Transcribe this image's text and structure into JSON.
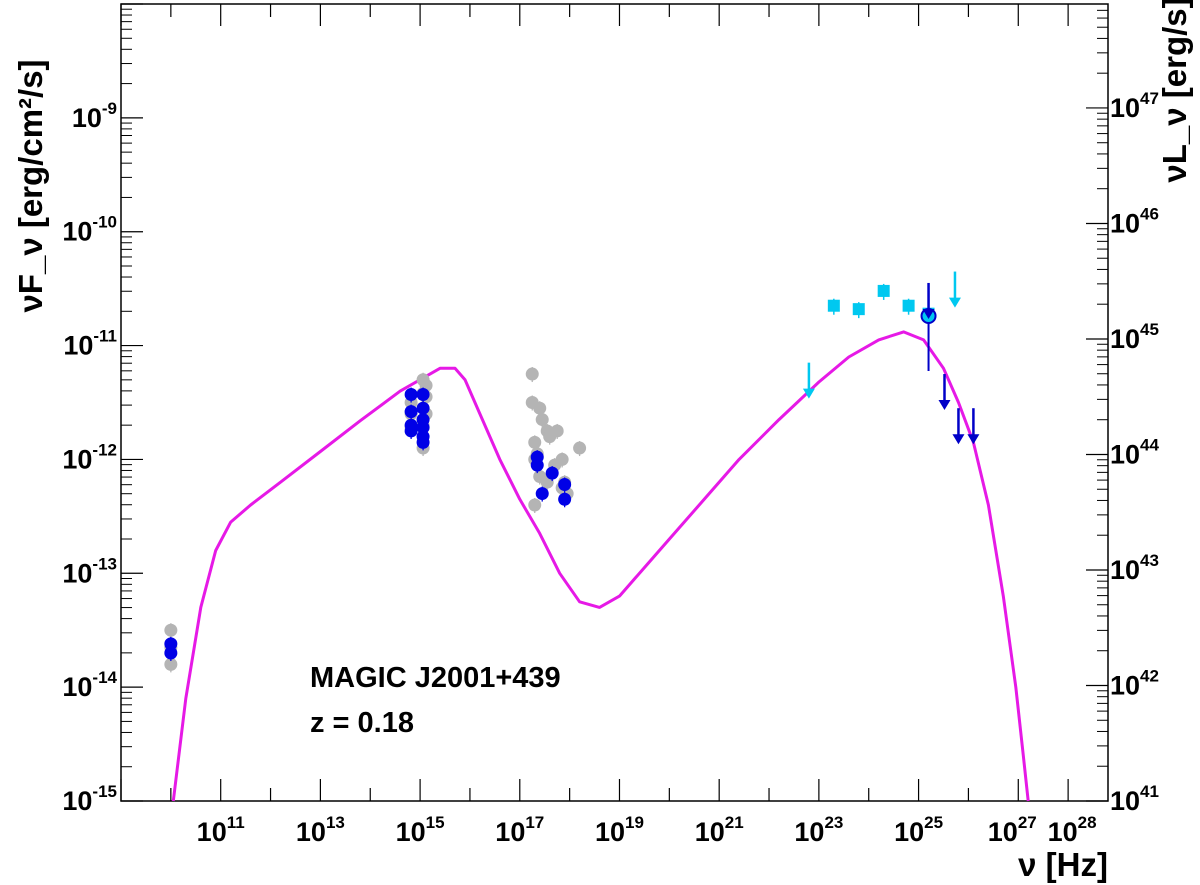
{
  "chart_data": {
    "type": "scatter",
    "title": "",
    "xlabel": "ν [Hz]",
    "ylabel_left": "νF_ν [erg/cm²/s]",
    "ylabel_right": "νL_ν [erg/s]",
    "x_scale": "log",
    "y_scale": "log",
    "xlim_log10": [
      9.0,
      28.8
    ],
    "ylim_log10": [
      -15,
      -8
    ],
    "right_ylim_log10": [
      41,
      47.9
    ],
    "x_ticks": [
      {
        "base": "10",
        "exp": "11",
        "log": 11
      },
      {
        "base": "10",
        "exp": "13",
        "log": 13
      },
      {
        "base": "10",
        "exp": "15",
        "log": 15
      },
      {
        "base": "10",
        "exp": "17",
        "log": 17
      },
      {
        "base": "10",
        "exp": "19",
        "log": 19
      },
      {
        "base": "10",
        "exp": "21",
        "log": 21
      },
      {
        "base": "10",
        "exp": "23",
        "log": 23
      },
      {
        "base": "10",
        "exp": "25",
        "log": 25
      },
      {
        "base": "10",
        "exp": "27",
        "log": 27
      },
      {
        "base": "10",
        "exp": "28",
        "log": 28
      }
    ],
    "y_ticks_left": [
      {
        "base": "10",
        "exp": "-15",
        "log": -15
      },
      {
        "base": "10",
        "exp": "-14",
        "log": -14
      },
      {
        "base": "10",
        "exp": "-13",
        "log": -13
      },
      {
        "base": "10",
        "exp": "-12",
        "log": -12
      },
      {
        "base": "10",
        "exp": "-11",
        "log": -11
      },
      {
        "base": "10",
        "exp": "-10",
        "log": -10
      },
      {
        "base": "10",
        "exp": "-9",
        "log": -9
      }
    ],
    "y_ticks_right": [
      {
        "base": "10",
        "exp": "41",
        "log": 41
      },
      {
        "base": "10",
        "exp": "42",
        "log": 42
      },
      {
        "base": "10",
        "exp": "43",
        "log": 43
      },
      {
        "base": "10",
        "exp": "44",
        "log": 44
      },
      {
        "base": "10",
        "exp": "45",
        "log": 45
      },
      {
        "base": "10",
        "exp": "46",
        "log": 46
      },
      {
        "base": "10",
        "exp": "47",
        "log": 47
      }
    ],
    "annotations": [
      "MAGIC J2001+439",
      "z = 0.18"
    ],
    "colors": {
      "archival": "#b4b4b4",
      "simultaneous": "#0000e6",
      "fermi": "#00c8f0",
      "upper_limit_dark": "#0000c8",
      "model": "#e619e6"
    },
    "series": [
      {
        "style": "archival",
        "points": [
          [
            10.0,
            -13.5
          ],
          [
            10.0,
            -13.65
          ],
          [
            10.0,
            -13.8
          ],
          [
            14.82,
            -11.72
          ],
          [
            14.82,
            -11.6
          ],
          [
            14.82,
            -11.5
          ],
          [
            15.06,
            -11.9
          ],
          [
            15.06,
            -11.7
          ],
          [
            15.06,
            -11.55
          ],
          [
            15.06,
            -11.42
          ],
          [
            15.06,
            -11.3
          ],
          [
            15.12,
            -11.6
          ],
          [
            15.12,
            -11.45
          ],
          [
            15.12,
            -11.35
          ],
          [
            17.25,
            -11.25
          ],
          [
            17.25,
            -11.5
          ],
          [
            17.3,
            -11.85
          ],
          [
            17.3,
            -12.0
          ],
          [
            17.35,
            -11.95
          ],
          [
            17.4,
            -11.55
          ],
          [
            17.45,
            -11.65
          ],
          [
            17.55,
            -11.75
          ],
          [
            17.6,
            -11.8
          ],
          [
            17.7,
            -12.05
          ],
          [
            17.75,
            -11.75
          ],
          [
            17.85,
            -12.0
          ],
          [
            17.9,
            -12.2
          ],
          [
            17.85,
            -12.25
          ],
          [
            17.95,
            -12.3
          ],
          [
            17.55,
            -12.2
          ],
          [
            17.4,
            -12.15
          ],
          [
            17.3,
            -12.4
          ],
          [
            18.2,
            -11.9
          ]
        ]
      },
      {
        "style": "simultaneous",
        "points": [
          [
            10.0,
            -13.62
          ],
          [
            10.0,
            -13.7
          ],
          [
            14.82,
            -11.43
          ],
          [
            14.82,
            -11.58
          ],
          [
            14.82,
            -11.7
          ],
          [
            14.82,
            -11.75
          ],
          [
            15.06,
            -11.43
          ],
          [
            15.06,
            -11.55
          ],
          [
            15.06,
            -11.65
          ],
          [
            15.06,
            -11.72
          ],
          [
            15.06,
            -11.8
          ],
          [
            15.06,
            -11.85
          ],
          [
            17.35,
            -11.98
          ],
          [
            17.35,
            -12.05
          ],
          [
            17.45,
            -12.3
          ],
          [
            17.65,
            -12.12
          ],
          [
            17.9,
            -12.22
          ],
          [
            17.9,
            -12.35
          ]
        ]
      },
      {
        "style": "fermi",
        "points": [
          [
            23.3,
            -10.65
          ],
          [
            23.8,
            -10.68
          ],
          [
            24.3,
            -10.52
          ],
          [
            24.8,
            -10.65
          ],
          [
            25.2,
            -10.72
          ]
        ],
        "upper_limits": [
          [
            22.8,
            -11.15
          ],
          [
            25.73,
            -10.35
          ]
        ]
      },
      {
        "style": "upper_limit_dark",
        "points": [
          [
            25.2,
            -10.74
          ]
        ],
        "upper_limits": [
          [
            25.2,
            -10.45
          ],
          [
            25.52,
            -11.25
          ],
          [
            25.8,
            -11.55
          ],
          [
            26.1,
            -11.55
          ]
        ]
      },
      {
        "style": "model",
        "line": [
          [
            10.05,
            -15.0
          ],
          [
            10.3,
            -14.1
          ],
          [
            10.6,
            -13.3
          ],
          [
            10.9,
            -12.8
          ],
          [
            11.2,
            -12.55
          ],
          [
            11.6,
            -12.4
          ],
          [
            12.2,
            -12.2
          ],
          [
            13.0,
            -11.93
          ],
          [
            13.8,
            -11.66
          ],
          [
            14.6,
            -11.4
          ],
          [
            15.0,
            -11.3
          ],
          [
            15.4,
            -11.2
          ],
          [
            15.7,
            -11.2
          ],
          [
            15.9,
            -11.3
          ],
          [
            16.2,
            -11.6
          ],
          [
            16.6,
            -12.0
          ],
          [
            17.0,
            -12.35
          ],
          [
            17.4,
            -12.65
          ],
          [
            17.8,
            -13.0
          ],
          [
            18.2,
            -13.25
          ],
          [
            18.6,
            -13.3
          ],
          [
            19.0,
            -13.2
          ],
          [
            19.5,
            -12.95
          ],
          [
            20.0,
            -12.7
          ],
          [
            20.6,
            -12.4
          ],
          [
            21.4,
            -12.0
          ],
          [
            22.2,
            -11.65
          ],
          [
            23.0,
            -11.32
          ],
          [
            23.6,
            -11.1
          ],
          [
            24.2,
            -10.95
          ],
          [
            24.7,
            -10.88
          ],
          [
            25.1,
            -10.95
          ],
          [
            25.5,
            -11.2
          ],
          [
            25.8,
            -11.5
          ],
          [
            26.1,
            -11.85
          ],
          [
            26.4,
            -12.4
          ],
          [
            26.7,
            -13.2
          ],
          [
            26.95,
            -14.0
          ],
          [
            27.1,
            -14.6
          ],
          [
            27.2,
            -15.0
          ]
        ]
      }
    ]
  }
}
